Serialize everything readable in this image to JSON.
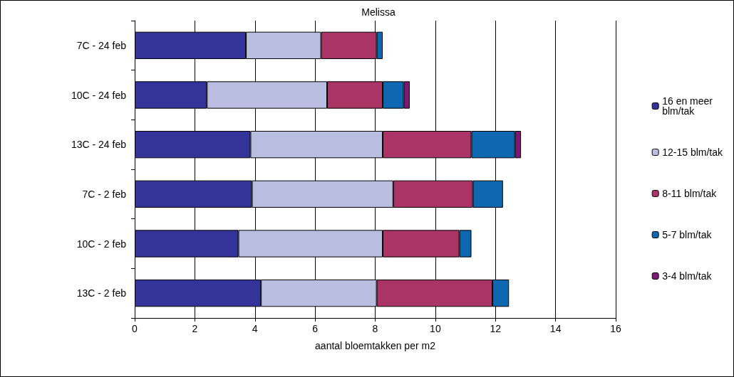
{
  "chart_data": {
    "type": "bar",
    "orientation": "horizontal",
    "stacked": true,
    "title": "Melissa",
    "xlabel": "aantal bloemtakken per m2",
    "categories": [
      "7C - 24 feb",
      "10C - 24 feb",
      "13C - 24 feb",
      "7C - 2 feb",
      "10C - 2 feb",
      "13C - 2 feb"
    ],
    "series": [
      {
        "name": "16 en meer blm/tak",
        "color": "#333399",
        "values": [
          3.7,
          2.4,
          3.85,
          3.9,
          3.45,
          4.2
        ]
      },
      {
        "name": "12-15 blm/tak",
        "color": "#b9bddf",
        "values": [
          2.5,
          4.0,
          4.4,
          4.7,
          4.8,
          3.85
        ]
      },
      {
        "name": "8-11 blm/tak",
        "color": "#ab3466",
        "values": [
          1.85,
          1.85,
          2.95,
          2.65,
          2.55,
          3.85
        ]
      },
      {
        "name": "5-7 blm/tak",
        "color": "#0e67b1",
        "values": [
          0.2,
          0.7,
          1.45,
          1.0,
          0.4,
          0.55
        ]
      },
      {
        "name": "3-4 blm/tak",
        "color": "#7a1a74",
        "values": [
          null,
          0.2,
          0.2,
          null,
          null,
          null
        ]
      }
    ],
    "xlim": [
      0,
      16
    ],
    "xticks": [
      0,
      2,
      4,
      6,
      8,
      10,
      12,
      14,
      16
    ],
    "grid": "x",
    "legend": "right"
  }
}
